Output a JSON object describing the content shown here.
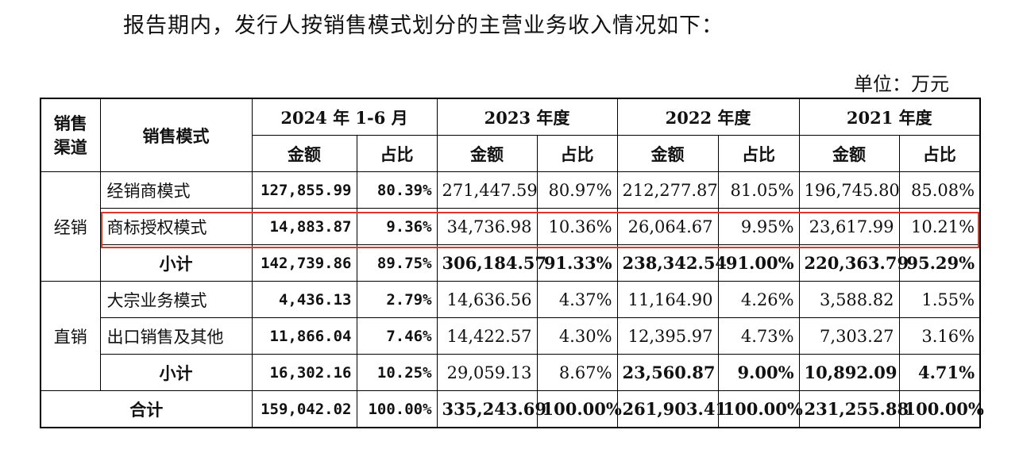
{
  "intro": "报告期内，发行人按销售模式划分的主营业务收入情况如下：",
  "unit": "单位：万元",
  "table": {
    "header": {
      "channel": "销售渠道",
      "mode": "销售模式",
      "periods": [
        "2024 年 1-6 月",
        "2023 年度",
        "2022 年度",
        "2021 年度"
      ],
      "subheaders": [
        "金额",
        "占比",
        "金额",
        "占比",
        "金额",
        "占比",
        "金额",
        "占比"
      ]
    },
    "groups": [
      {
        "channel": "经销",
        "rows": [
          {
            "mode": "经销商模式",
            "cells": [
              "127,855.99",
              "80.39%",
              "271,447.59",
              "80.97%",
              "212,277.87",
              "81.05%",
              "196,745.80",
              "85.08%"
            ]
          },
          {
            "mode": "商标授权模式",
            "cells": [
              "14,883.87",
              "9.36%",
              "34,736.98",
              "10.36%",
              "26,064.67",
              "9.95%",
              "23,617.99",
              "10.21%"
            ]
          }
        ],
        "subtotal": {
          "label": "小计",
          "cells": [
            "142,739.86",
            "89.75%",
            "306,184.57",
            "91.33%",
            "238,342.54",
            "91.00%",
            "220,363.79",
            "95.29%"
          ]
        }
      },
      {
        "channel": "直销",
        "rows": [
          {
            "mode": "大宗业务模式",
            "cells": [
              "4,436.13",
              "2.79%",
              "14,636.56",
              "4.37%",
              "11,164.90",
              "4.26%",
              "3,588.82",
              "1.55%"
            ]
          },
          {
            "mode": "出口销售及其他",
            "cells": [
              "11,866.04",
              "7.46%",
              "14,422.57",
              "4.30%",
              "12,395.97",
              "4.73%",
              "7,303.27",
              "3.16%"
            ]
          }
        ],
        "subtotal": {
          "label": "小计",
          "cells": [
            "16,302.16",
            "10.25%",
            "29,059.13",
            "8.67%",
            "23,560.87",
            "9.00%",
            "10,892.09",
            "4.71%"
          ]
        }
      }
    ],
    "total": {
      "label": "合计",
      "cells": [
        "159,042.02",
        "100.00%",
        "335,243.69",
        "100.00%",
        "261,903.41",
        "100.00%",
        "231,255.88",
        "100.00%"
      ]
    }
  }
}
